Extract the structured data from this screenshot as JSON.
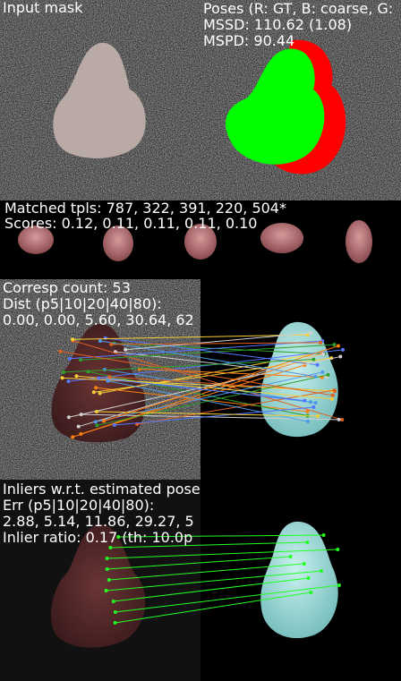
{
  "panels": [
    {
      "lines": [
        "Input mask"
      ]
    },
    {
      "lines": [
        "Poses (R: GT, B: coarse, G:",
        "MSSD: 110.62 (1.08)",
        "MSPD: 90.44"
      ]
    },
    {
      "lines": [
        "Matched tpls: 787, 322, 391, 220, 504*",
        "Scores: 0.12, 0.11, 0.11, 0.11, 0.10"
      ]
    },
    {
      "lines": [
        "Corresp count: 53",
        "Dist (p5|10|20|40|80):",
        "0.00, 0.00, 5.60, 30.64, 62"
      ]
    },
    {
      "lines": [
        "Inliers w.r.t. estimated pose",
        "Err (p5|10|20|40|80):",
        "2.88, 5.14, 11.86, 29.27, 5",
        "Inlier ratio: 0.17 (th: 10.0p"
      ]
    }
  ]
}
